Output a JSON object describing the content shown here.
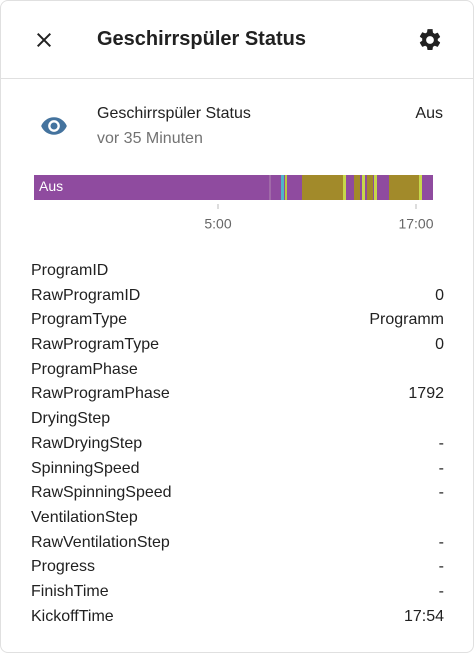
{
  "header": {
    "title": "Geschirrspüler Status"
  },
  "entity": {
    "name": "Geschirrspüler Status",
    "state": "Aus",
    "last_changed": "vor 35 Minuten"
  },
  "timeline": {
    "label": "Aus",
    "axis_labels": [
      "5:00",
      "17:00"
    ]
  },
  "attributes": [
    {
      "name": "ProgramID"
    },
    {
      "name": "RawProgramID",
      "value": "0"
    },
    {
      "name": "ProgramType",
      "value": "Programm"
    },
    {
      "name": "RawProgramType",
      "value": "0"
    },
    {
      "name": "ProgramPhase"
    },
    {
      "name": "RawProgramPhase",
      "value": "1792"
    },
    {
      "name": "DryingStep"
    },
    {
      "name": "RawDryingStep",
      "value": "-"
    },
    {
      "name": "SpinningSpeed",
      "value": "-"
    },
    {
      "name": "RawSpinningSpeed",
      "value": "-"
    },
    {
      "name": "VentilationStep"
    },
    {
      "name": "RawVentilationStep",
      "value": "-"
    },
    {
      "name": "Progress",
      "value": "-"
    },
    {
      "name": "FinishTime",
      "value": "-"
    },
    {
      "name": "KickoffTime",
      "value": "17:54"
    }
  ]
}
